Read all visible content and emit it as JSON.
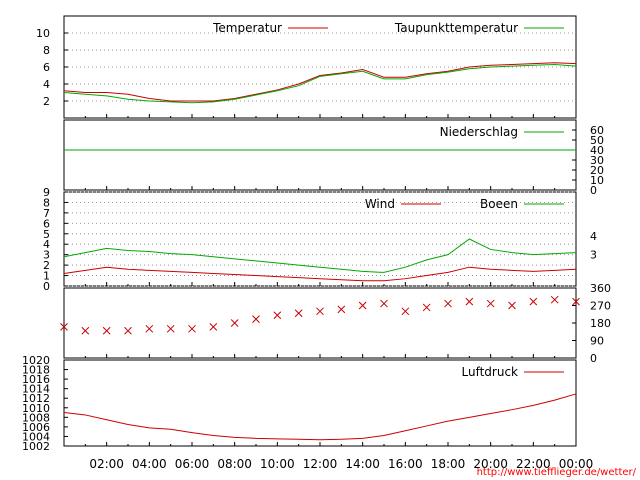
{
  "chart_data": [
    {
      "type": "line",
      "panel": "temperature",
      "ylim": [
        0,
        12
      ],
      "yticks": [
        2,
        4,
        6,
        8,
        10
      ],
      "grid": true,
      "legend_placement": "top",
      "x": [
        0,
        1,
        2,
        3,
        4,
        5,
        6,
        7,
        8,
        9,
        10,
        11,
        12,
        13,
        14,
        15,
        16,
        17,
        18,
        19,
        20,
        21,
        22,
        23,
        24
      ],
      "series": [
        {
          "name": "Temperatur",
          "color": "#cc0000",
          "values": [
            3.2,
            3.0,
            3.0,
            2.8,
            2.3,
            2.0,
            2.0,
            2.0,
            2.3,
            2.8,
            3.3,
            4.0,
            5.0,
            5.3,
            5.7,
            4.8,
            4.8,
            5.2,
            5.5,
            6.0,
            6.2,
            6.3,
            6.4,
            6.5,
            6.4
          ]
        },
        {
          "name": "Taupunkttemperatur",
          "color": "#00aa00",
          "values": [
            3.0,
            2.8,
            2.6,
            2.2,
            2.0,
            1.9,
            1.8,
            1.9,
            2.2,
            2.7,
            3.2,
            3.8,
            4.9,
            5.2,
            5.5,
            4.6,
            4.6,
            5.1,
            5.4,
            5.8,
            6.0,
            6.1,
            6.2,
            6.3,
            6.1
          ]
        }
      ]
    },
    {
      "type": "line",
      "panel": "precipitation",
      "ylim": [
        0,
        70
      ],
      "yticks": [
        0,
        10,
        20,
        30,
        40,
        50,
        60
      ],
      "x": [
        0,
        24
      ],
      "series": [
        {
          "name": "Niederschlag",
          "color": "#00aa00",
          "values": [
            40,
            40
          ]
        }
      ]
    },
    {
      "type": "line",
      "panel": "wind",
      "ylim": [
        0,
        9
      ],
      "yticks": [
        0,
        1,
        2,
        3,
        4,
        5,
        6,
        7,
        8,
        9
      ],
      "y2ticks": [
        {
          "value": 3,
          "label": "3"
        },
        {
          "value": 4.8,
          "label": "4"
        }
      ],
      "x": [
        0,
        1,
        2,
        3,
        4,
        5,
        6,
        7,
        8,
        9,
        10,
        11,
        12,
        13,
        14,
        15,
        16,
        17,
        18,
        19,
        20,
        21,
        22,
        23,
        24
      ],
      "series": [
        {
          "name": "Wind",
          "color": "#cc0000",
          "values": [
            1.2,
            1.5,
            1.8,
            1.6,
            1.5,
            1.4,
            1.3,
            1.2,
            1.1,
            1.0,
            0.9,
            0.8,
            0.7,
            0.6,
            0.5,
            0.5,
            0.7,
            1.0,
            1.3,
            1.8,
            1.6,
            1.5,
            1.4,
            1.5,
            1.6
          ]
        },
        {
          "name": "Boeen",
          "color": "#00aa00",
          "values": [
            2.8,
            3.2,
            3.6,
            3.4,
            3.3,
            3.1,
            3.0,
            2.8,
            2.6,
            2.4,
            2.2,
            2.0,
            1.8,
            1.6,
            1.4,
            1.3,
            1.8,
            2.5,
            3.0,
            4.5,
            3.5,
            3.2,
            3.0,
            3.1,
            3.2
          ]
        }
      ]
    },
    {
      "type": "scatter",
      "panel": "wind-direction",
      "ylim": [
        0,
        360
      ],
      "yticks": [
        0,
        90,
        180,
        270,
        360
      ],
      "color": "#cc0000",
      "x": [
        0,
        1,
        2,
        3,
        4,
        5,
        6,
        7,
        8,
        9,
        10,
        11,
        12,
        13,
        14,
        15,
        16,
        17,
        18,
        19,
        20,
        21,
        22,
        23,
        24
      ],
      "values": [
        160,
        140,
        140,
        140,
        150,
        150,
        150,
        160,
        180,
        200,
        220,
        230,
        240,
        250,
        270,
        280,
        240,
        260,
        280,
        290,
        280,
        270,
        290,
        300,
        290
      ]
    },
    {
      "type": "line",
      "panel": "pressure",
      "ylim": [
        1002,
        1020
      ],
      "yticks": [
        1002,
        1004,
        1006,
        1008,
        1010,
        1012,
        1014,
        1016,
        1018,
        1020
      ],
      "x": [
        0,
        1,
        2,
        3,
        4,
        5,
        6,
        7,
        8,
        9,
        10,
        11,
        12,
        13,
        14,
        15,
        16,
        17,
        18,
        19,
        20,
        21,
        22,
        23,
        24
      ],
      "series": [
        {
          "name": "Luftdruck",
          "color": "#cc0000",
          "values": [
            1009.0,
            1008.5,
            1007.5,
            1006.5,
            1005.8,
            1005.5,
            1004.8,
            1004.2,
            1003.8,
            1003.6,
            1003.5,
            1003.4,
            1003.3,
            1003.4,
            1003.6,
            1004.2,
            1005.2,
            1006.2,
            1007.2,
            1008.0,
            1008.8,
            1009.6,
            1010.5,
            1011.6,
            1012.9
          ]
        }
      ]
    }
  ],
  "xaxis": {
    "labels": [
      "02:00",
      "04:00",
      "06:00",
      "08:00",
      "10:00",
      "12:00",
      "14:00",
      "16:00",
      "18:00",
      "20:00",
      "22:00",
      "00:00"
    ]
  },
  "credit": "http://www.tiefflieger.de/wetter/"
}
